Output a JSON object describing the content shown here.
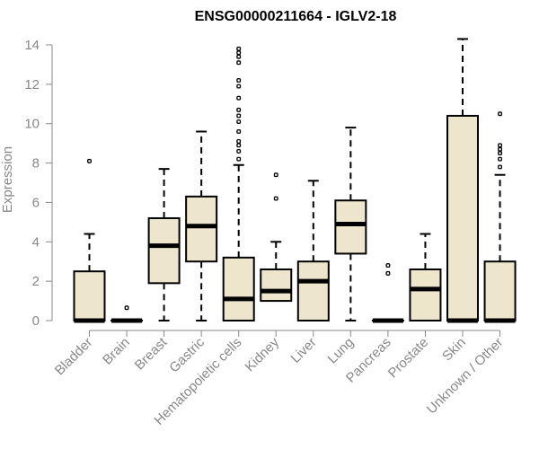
{
  "chart_data": {
    "type": "box",
    "title": "ENSG00000211664 - IGLV2-18",
    "xlabel": "",
    "ylabel": "Expression",
    "ylim": [
      0,
      14
    ],
    "yticks": [
      0,
      2,
      4,
      6,
      8,
      10,
      12,
      14
    ],
    "grid": false,
    "legend": "none",
    "box_fill": "#ede6cc",
    "categories": [
      "Bladder",
      "Brain",
      "Breast",
      "Gastric",
      "Hematopoietic cells",
      "Kidney",
      "Liver",
      "Lung",
      "Pancreas",
      "Prostate",
      "Skin",
      "Unknown / Other"
    ],
    "boxes": [
      {
        "min": 0,
        "q1": 0,
        "median": 0,
        "q3": 2.5,
        "max": 4.4,
        "outliers": [
          8.1
        ]
      },
      {
        "min": 0,
        "q1": 0,
        "median": 0,
        "q3": 0,
        "max": 0,
        "outliers": [
          0.65
        ]
      },
      {
        "min": 0,
        "q1": 1.9,
        "median": 3.8,
        "q3": 5.2,
        "max": 7.7,
        "outliers": []
      },
      {
        "min": 0,
        "q1": 3.0,
        "median": 4.8,
        "q3": 6.3,
        "max": 9.6,
        "outliers": []
      },
      {
        "min": 0,
        "q1": 0,
        "median": 1.1,
        "q3": 3.2,
        "max": 7.9,
        "outliers": [
          8.2,
          8.6,
          8.9,
          9.1,
          9.6,
          10.1,
          10.4,
          10.7,
          11.3,
          11.9,
          12.2,
          13.1,
          13.4,
          13.6,
          13.8
        ]
      },
      {
        "min": 1.0,
        "q1": 1.0,
        "median": 1.5,
        "q3": 2.6,
        "max": 4.0,
        "outliers": [
          6.2,
          7.4
        ]
      },
      {
        "min": 0,
        "q1": 0,
        "median": 2.0,
        "q3": 3.0,
        "max": 7.1,
        "outliers": []
      },
      {
        "min": 0,
        "q1": 3.4,
        "median": 4.9,
        "q3": 6.1,
        "max": 9.8,
        "outliers": []
      },
      {
        "min": 0,
        "q1": 0,
        "median": 0,
        "q3": 0,
        "max": 0,
        "outliers": [
          2.4,
          2.8
        ]
      },
      {
        "min": 0,
        "q1": 0,
        "median": 1.6,
        "q3": 2.6,
        "max": 4.4,
        "outliers": []
      },
      {
        "min": 0,
        "q1": 0,
        "median": 0,
        "q3": 10.4,
        "max": 14.3,
        "outliers": []
      },
      {
        "min": 0,
        "q1": 0,
        "median": 0,
        "q3": 3.0,
        "max": 7.4,
        "outliers": [
          7.8,
          8.2,
          8.5,
          8.7,
          8.9,
          10.5
        ]
      }
    ]
  }
}
